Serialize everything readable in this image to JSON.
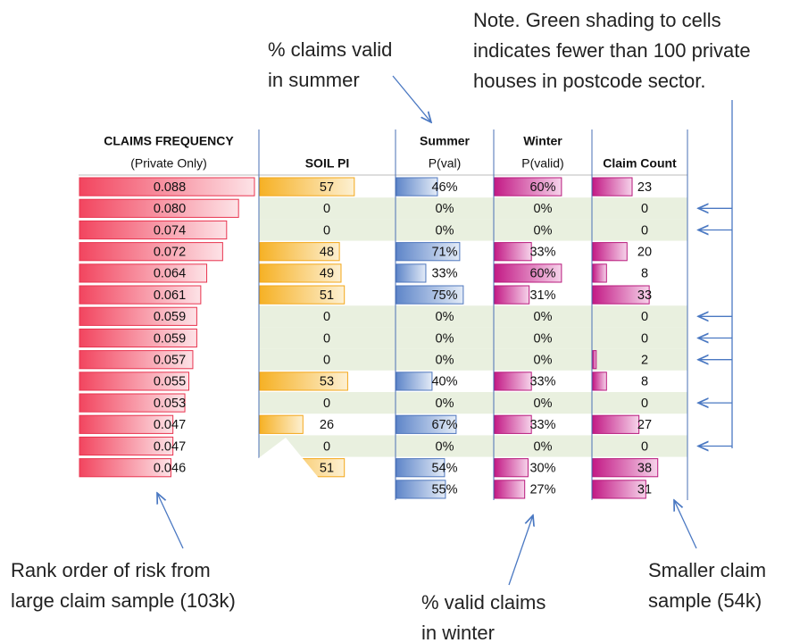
{
  "table": {
    "headers": [
      [
        "CLAIMS FREQUENCY",
        "(Private Only)"
      ],
      [
        "SOIL PI"
      ],
      [
        "Summer",
        "P(val)"
      ],
      [
        "Winter",
        "P(valid)"
      ],
      [
        "Claim Count"
      ]
    ],
    "rows": [
      {
        "cells": [
          "0.088",
          "57",
          "46%",
          "60%",
          "23"
        ],
        "shaded": false
      },
      {
        "cells": [
          "0.080",
          "0",
          "0%",
          "0%",
          "0"
        ],
        "shaded": true
      },
      {
        "cells": [
          "0.074",
          "0",
          "0%",
          "0%",
          "0"
        ],
        "shaded": true
      },
      {
        "cells": [
          "0.072",
          "48",
          "71%",
          "33%",
          "20"
        ],
        "shaded": false
      },
      {
        "cells": [
          "0.064",
          "49",
          "33%",
          "60%",
          "8"
        ],
        "shaded": false
      },
      {
        "cells": [
          "0.061",
          "51",
          "75%",
          "31%",
          "33"
        ],
        "shaded": false
      },
      {
        "cells": [
          "0.059",
          "0",
          "0%",
          "0%",
          "0"
        ],
        "shaded": true
      },
      {
        "cells": [
          "0.059",
          "0",
          "0%",
          "0%",
          "0"
        ],
        "shaded": true
      },
      {
        "cells": [
          "0.057",
          "0",
          "0%",
          "0%",
          "2"
        ],
        "shaded": true
      },
      {
        "cells": [
          "0.055",
          "53",
          "40%",
          "33%",
          "8"
        ],
        "shaded": false
      },
      {
        "cells": [
          "0.053",
          "0",
          "0%",
          "0%",
          "0"
        ],
        "shaded": true
      },
      {
        "cells": [
          "0.047",
          "26",
          "67%",
          "33%",
          "27"
        ],
        "shaded": false
      },
      {
        "cells": [
          "0.047",
          "0",
          "0%",
          "0%",
          "0"
        ],
        "shaded": true
      },
      {
        "cells": [
          "0.046",
          "51",
          "54%",
          "30%",
          "38"
        ],
        "shaded": false
      },
      {
        "cells": [
          null,
          null,
          "55%",
          "27%",
          "31"
        ],
        "shaded": false
      }
    ]
  },
  "annotations": {
    "note": [
      "Note. Green shading to cells",
      "indicates fewer than 100 private",
      "houses in postcode sector."
    ],
    "summer": [
      "% claims valid",
      "in summer"
    ],
    "winter": [
      "% valid claims",
      "in winter"
    ],
    "rank": [
      "Rank order of risk from",
      "large claim sample (103k)"
    ],
    "smaller": [
      "Smaller claim",
      "sample (54k)"
    ]
  }
}
